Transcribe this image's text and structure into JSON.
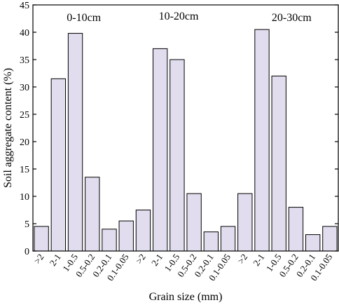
{
  "chart_data": {
    "type": "bar",
    "xlabel": "Grain size (mm)",
    "ylabel": "Soil aggregate content (%)",
    "ylim": [
      0,
      45
    ],
    "yticks": [
      0,
      5,
      10,
      15,
      20,
      25,
      30,
      35,
      40,
      45
    ],
    "grid": false,
    "bar_color": "#e1ddee",
    "groups": [
      {
        "label": "0-10cm",
        "categories": [
          ">2",
          "2-1",
          "1-0.5",
          "0.5-0.2",
          "0.2-0.1",
          "0.1-0.05"
        ],
        "values": [
          4.5,
          31.5,
          39.8,
          13.5,
          4.0,
          5.5
        ]
      },
      {
        "label": "10-20cm",
        "categories": [
          ">2",
          "2-1",
          "1-0.5",
          "0.5-0.2",
          "0.2-0.1",
          "0.1-0.05"
        ],
        "values": [
          7.5,
          37.0,
          35.0,
          10.5,
          3.5,
          4.5
        ]
      },
      {
        "label": "20-30cm",
        "categories": [
          ">2",
          "2-1",
          "1-0.5",
          "0.5-0.2",
          "0.2-0.1",
          "0.1-0.05"
        ],
        "values": [
          10.5,
          40.5,
          32.0,
          8.0,
          3.0,
          4.5
        ]
      }
    ]
  }
}
